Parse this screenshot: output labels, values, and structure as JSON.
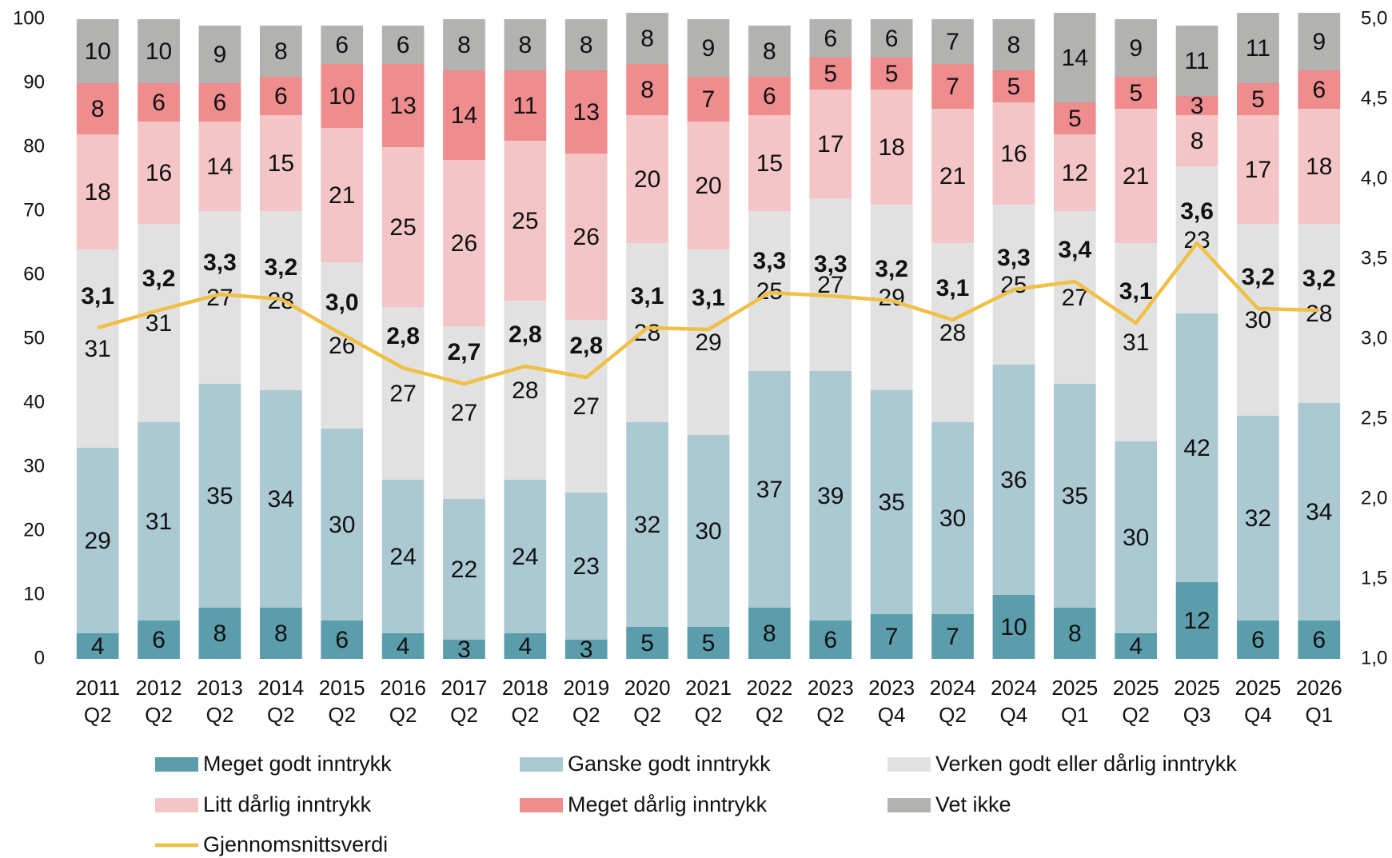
{
  "chart_data": {
    "type": "bar",
    "stacked": true,
    "categories": [
      [
        "2011",
        "Q2"
      ],
      [
        "2012",
        "Q2"
      ],
      [
        "2013",
        "Q2"
      ],
      [
        "2014",
        "Q2"
      ],
      [
        "2015",
        "Q2"
      ],
      [
        "2016",
        "Q2"
      ],
      [
        "2017",
        "Q2"
      ],
      [
        "2018",
        "Q2"
      ],
      [
        "2019",
        "Q2"
      ],
      [
        "2020",
        "Q2"
      ],
      [
        "2021",
        "Q2"
      ],
      [
        "2022",
        "Q2"
      ],
      [
        "2023",
        "Q2"
      ],
      [
        "2023",
        "Q4"
      ],
      [
        "2024",
        "Q2"
      ],
      [
        "2024",
        "Q4"
      ],
      [
        "2025",
        "Q1"
      ],
      [
        "2025",
        "Q2"
      ],
      [
        "2025",
        "Q3"
      ],
      [
        "2025",
        "Q4"
      ],
      [
        "2026",
        "Q1"
      ]
    ],
    "series": [
      {
        "name": "Meget godt inntrykk",
        "color": "#5b9dab",
        "values": [
          4,
          6,
          8,
          8,
          6,
          4,
          3,
          4,
          3,
          5,
          5,
          8,
          6,
          7,
          7,
          10,
          8,
          4,
          12,
          6,
          6
        ]
      },
      {
        "name": "Ganske godt inntrykk",
        "color": "#abc9d3",
        "values": [
          29,
          31,
          35,
          34,
          30,
          24,
          22,
          24,
          23,
          32,
          30,
          37,
          39,
          35,
          30,
          36,
          35,
          30,
          42,
          32,
          34
        ]
      },
      {
        "name": "Verken godt eller dårlig inntrykk",
        "color": "#e1e1e1",
        "values": [
          31,
          31,
          27,
          28,
          26,
          27,
          27,
          28,
          27,
          28,
          29,
          25,
          27,
          29,
          28,
          25,
          27,
          31,
          23,
          30,
          28
        ]
      },
      {
        "name": "Litt dårlig inntrykk",
        "color": "#f4c5c6",
        "values": [
          18,
          16,
          14,
          15,
          21,
          25,
          26,
          25,
          26,
          20,
          20,
          15,
          17,
          18,
          21,
          16,
          12,
          21,
          8,
          17,
          18
        ]
      },
      {
        "name": "Meget dårlig inntrykk",
        "color": "#ee8c8e",
        "values": [
          8,
          6,
          6,
          6,
          10,
          13,
          14,
          11,
          13,
          8,
          7,
          6,
          5,
          5,
          7,
          5,
          5,
          5,
          3,
          5,
          6
        ]
      },
      {
        "name": "Vet ikke",
        "color": "#b2b2b0",
        "values": [
          10,
          10,
          9,
          8,
          6,
          6,
          8,
          8,
          8,
          8,
          9,
          8,
          6,
          6,
          7,
          8,
          14,
          9,
          11,
          11,
          9
        ]
      },
      {
        "name": "Gjennomsnittsverdi",
        "color": "#f0bf45",
        "type": "line",
        "axis": "y2",
        "values": [
          3.07,
          3.18,
          3.28,
          3.25,
          3.03,
          2.82,
          2.72,
          2.83,
          2.76,
          3.07,
          3.06,
          3.29,
          3.27,
          3.24,
          3.12,
          3.31,
          3.36,
          3.1,
          3.6,
          3.19,
          3.18
        ],
        "value_labels": [
          "3,1",
          "3,2",
          "3,3",
          "3,2",
          "3,0",
          "2,8",
          "2,7",
          "2,8",
          "2,8",
          "3,1",
          "3,1",
          "3,3",
          "3,3",
          "3,2",
          "3,1",
          "3,3",
          "3,4",
          "3,1",
          "3,6",
          "3,2",
          "3,2"
        ]
      }
    ],
    "ylim": [
      0,
      100
    ],
    "yticks": [
      0,
      10,
      20,
      30,
      40,
      50,
      60,
      70,
      80,
      90,
      100
    ],
    "y2lim": [
      1,
      5
    ],
    "y2ticks": [
      {
        "value": 1,
        "label": "1,0"
      },
      {
        "value": 1.5,
        "label": "1,5"
      },
      {
        "value": 2,
        "label": "2,0"
      },
      {
        "value": 2.5,
        "label": "2,5"
      },
      {
        "value": 3,
        "label": "3,0"
      },
      {
        "value": 3.5,
        "label": "3,5"
      },
      {
        "value": 4,
        "label": "4,0"
      },
      {
        "value": 4.5,
        "label": "4,5"
      },
      {
        "value": 5,
        "label": "5,0"
      }
    ]
  }
}
